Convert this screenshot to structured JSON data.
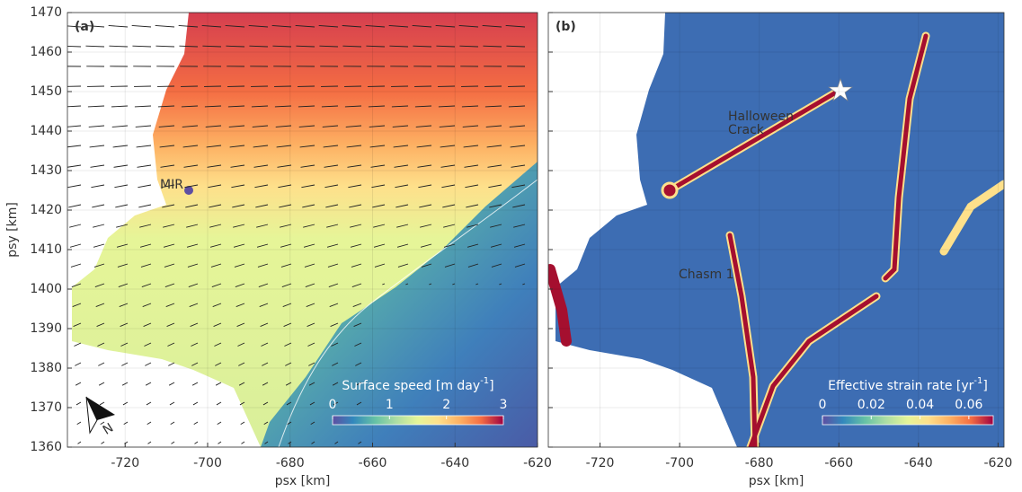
{
  "chart_data": [
    {
      "type": "map",
      "panel_label": "(a)",
      "xlabel": "psx [km]",
      "ylabel": "psy [km]",
      "xlim": [
        -734,
        -620
      ],
      "ylim": [
        1360,
        1470
      ],
      "xticks": [
        -720,
        -700,
        -680,
        -660,
        -640,
        -620
      ],
      "yticks": [
        1360,
        1370,
        1380,
        1390,
        1400,
        1410,
        1420,
        1430,
        1440,
        1450,
        1460,
        1470
      ],
      "ytick_labels": true,
      "grid": true,
      "annotations": [
        {
          "lines": [
            "MIR"
          ]
        }
      ],
      "north_label": "N",
      "colorbar": {
        "label": "Surface speed [m day",
        "label_superscript": "-1",
        "label_suffix": "]",
        "lim": [
          0,
          3
        ],
        "ticks": [
          0,
          1,
          2,
          3
        ]
      }
    },
    {
      "type": "map",
      "panel_label": "(b)",
      "xlabel": "psx [km]",
      "xlim": [
        -733,
        -618.5
      ],
      "ylim": [
        1360,
        1470
      ],
      "xticks": [
        -720,
        -700,
        -680,
        -660,
        -640,
        -620
      ],
      "yticks": [
        1360,
        1370,
        1380,
        1390,
        1400,
        1410,
        1420,
        1430,
        1440,
        1450,
        1460,
        1470
      ],
      "ytick_labels": false,
      "grid": true,
      "annotations": [
        {
          "lines": [
            "Halloween",
            "Crack"
          ]
        },
        {
          "lines": [
            "Chasm 1"
          ]
        }
      ],
      "colorbar": {
        "label": "Effective strain rate [yr",
        "label_superscript": "-1",
        "label_suffix": "]",
        "lim": [
          0,
          0.07
        ],
        "ticks": [
          0,
          0.02,
          0.04,
          0.06
        ]
      }
    }
  ]
}
